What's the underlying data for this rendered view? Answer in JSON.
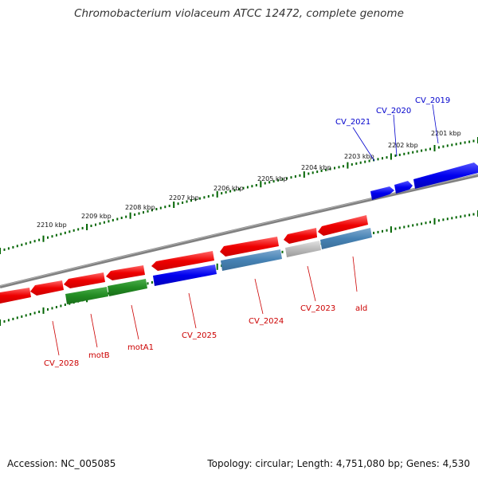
{
  "title": "Chromobacterium violaceum ATCC 12472, complete genome",
  "footer": {
    "accession": "Accession: NC_005085",
    "topology": "Topology: circular; Length: 4,751,080 bp; Genes: 4,530"
  },
  "colors": {
    "forward_gene": "#0000ee",
    "reverse_gene": "#ee0000",
    "reverse_gene_alt": "#4682b4",
    "operon_gene": "#228b22",
    "pseudo_gene": "#bbbbbb",
    "backbone": "#808080",
    "tick_marks": "#006400"
  },
  "scale_labels": [
    "2201 kbp",
    "2202 kbp",
    "2203 kbp",
    "2204 kbp",
    "2205 kbp",
    "2206 kbp",
    "2207 kbp",
    "2208 kbp",
    "2209 kbp",
    "2210 kbp"
  ],
  "gene_labels": [
    {
      "text": "CV_2019",
      "color": "blue"
    },
    {
      "text": "CV_2020",
      "color": "blue"
    },
    {
      "text": "CV_2021",
      "color": "blue"
    },
    {
      "text": "CV_2023",
      "color": "red"
    },
    {
      "text": "ald",
      "color": "red"
    },
    {
      "text": "CV_2024",
      "color": "red"
    },
    {
      "text": "CV_2025",
      "color": "red"
    },
    {
      "text": "motA1",
      "color": "red"
    },
    {
      "text": "motB",
      "color": "red"
    },
    {
      "text": "CV_2028",
      "color": "red"
    }
  ]
}
